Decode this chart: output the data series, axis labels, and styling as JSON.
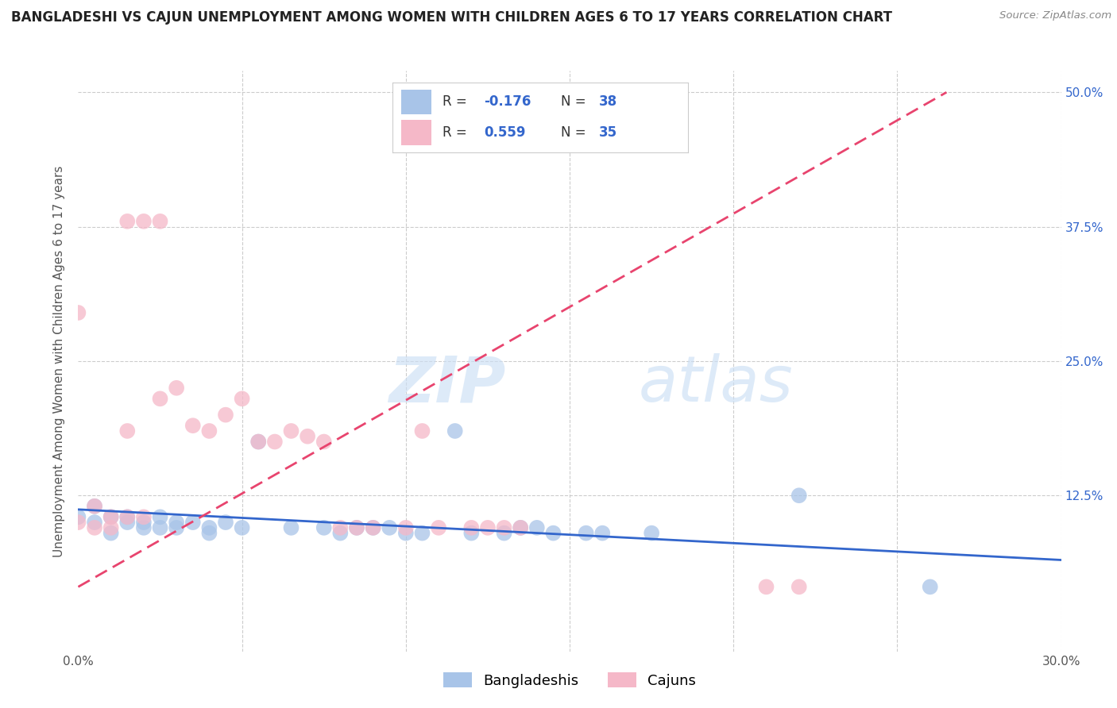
{
  "title": "BANGLADESHI VS CAJUN UNEMPLOYMENT AMONG WOMEN WITH CHILDREN AGES 6 TO 17 YEARS CORRELATION CHART",
  "source": "Source: ZipAtlas.com",
  "ylabel": "Unemployment Among Women with Children Ages 6 to 17 years",
  "xlim": [
    0.0,
    0.3
  ],
  "ylim": [
    -0.02,
    0.52
  ],
  "xticks": [
    0.0,
    0.05,
    0.1,
    0.15,
    0.2,
    0.25,
    0.3
  ],
  "xticklabels": [
    "0.0%",
    "",
    "",
    "",
    "",
    "",
    "30.0%"
  ],
  "ytick_vals": [
    0.125,
    0.25,
    0.375,
    0.5
  ],
  "ytick_labels": [
    "12.5%",
    "25.0%",
    "37.5%",
    "50.0%"
  ],
  "watermark_zip": "ZIP",
  "watermark_atlas": "atlas",
  "legend_r1": "-0.176",
  "legend_n1": "38",
  "legend_r2": "0.559",
  "legend_n2": "35",
  "blue_color": "#a8c4e8",
  "pink_color": "#f5b8c8",
  "blue_line_color": "#3366cc",
  "pink_line_color": "#e8446e",
  "bg_color": "#ffffff",
  "grid_color": "#cccccc",
  "blue_scatter_x": [
    0.0,
    0.005,
    0.005,
    0.01,
    0.01,
    0.015,
    0.015,
    0.02,
    0.02,
    0.025,
    0.025,
    0.03,
    0.03,
    0.035,
    0.04,
    0.04,
    0.045,
    0.05,
    0.055,
    0.065,
    0.075,
    0.08,
    0.085,
    0.09,
    0.095,
    0.1,
    0.105,
    0.115,
    0.12,
    0.13,
    0.135,
    0.14,
    0.145,
    0.155,
    0.16,
    0.175,
    0.22,
    0.26
  ],
  "blue_scatter_y": [
    0.105,
    0.1,
    0.115,
    0.09,
    0.105,
    0.1,
    0.105,
    0.095,
    0.1,
    0.095,
    0.105,
    0.095,
    0.1,
    0.1,
    0.09,
    0.095,
    0.1,
    0.095,
    0.175,
    0.095,
    0.095,
    0.09,
    0.095,
    0.095,
    0.095,
    0.09,
    0.09,
    0.185,
    0.09,
    0.09,
    0.095,
    0.095,
    0.09,
    0.09,
    0.09,
    0.09,
    0.125,
    0.04
  ],
  "pink_scatter_x": [
    0.0,
    0.0,
    0.005,
    0.005,
    0.01,
    0.01,
    0.015,
    0.015,
    0.015,
    0.02,
    0.02,
    0.025,
    0.025,
    0.03,
    0.035,
    0.04,
    0.045,
    0.05,
    0.055,
    0.06,
    0.065,
    0.07,
    0.075,
    0.08,
    0.085,
    0.09,
    0.1,
    0.105,
    0.11,
    0.12,
    0.125,
    0.13,
    0.135,
    0.21,
    0.22
  ],
  "pink_scatter_y": [
    0.1,
    0.295,
    0.095,
    0.115,
    0.095,
    0.105,
    0.105,
    0.185,
    0.38,
    0.105,
    0.38,
    0.215,
    0.38,
    0.225,
    0.19,
    0.185,
    0.2,
    0.215,
    0.175,
    0.175,
    0.185,
    0.18,
    0.175,
    0.095,
    0.095,
    0.095,
    0.095,
    0.185,
    0.095,
    0.095,
    0.095,
    0.095,
    0.095,
    0.04,
    0.04
  ],
  "blue_trendline_x": [
    0.0,
    0.3
  ],
  "blue_trendline_y": [
    0.112,
    0.065
  ],
  "pink_trendline_x": [
    0.0,
    0.265
  ],
  "pink_trendline_y": [
    0.04,
    0.5
  ]
}
